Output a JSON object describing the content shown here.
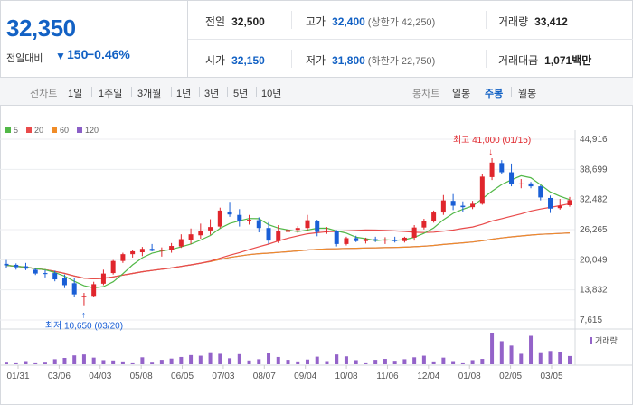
{
  "quote": {
    "price": "32,350",
    "change_label": "전일대비",
    "change_arrow": "▼",
    "change_value": "150",
    "change_pct": "−0.46%",
    "prev_close": {
      "label": "전일",
      "value": "32,500"
    },
    "high": {
      "label": "고가",
      "value": "32,400",
      "limit_label": "상한가",
      "limit_value": "42,250"
    },
    "volume": {
      "label": "거래량",
      "value": "33,412"
    },
    "open": {
      "label": "시가",
      "value": "32,150"
    },
    "low": {
      "label": "저가",
      "value": "31,800",
      "limit_label": "하한가",
      "limit_value": "22,750"
    },
    "trade_value": {
      "label": "거래대금",
      "value": "1,071",
      "unit": "백만"
    }
  },
  "toolbar": {
    "line_label": "선차트",
    "periods": [
      "1일",
      "1주일",
      "3개월",
      "1년",
      "3년",
      "5년",
      "10년"
    ],
    "candle_label": "봉차트",
    "candle_periods": [
      "일봉",
      "주봉",
      "월봉"
    ],
    "active_candle": "주봉"
  },
  "colors": {
    "up": "#e0262c",
    "down": "#1a5fd6",
    "ma5": "#52b847",
    "ma20": "#e94b4b",
    "ma60": "#f08c28",
    "ma120": "#8b5fc7",
    "volume": "#9463c9",
    "accent": "#1261c4"
  },
  "chart_data": {
    "type": "candlestick",
    "y_ticks": [
      "44,916",
      "38,699",
      "32,482",
      "26,265",
      "20,049",
      "13,832",
      "7,615"
    ],
    "ylim": [
      7615,
      44916
    ],
    "x_labels": [
      "01/31",
      "03/06",
      "04/03",
      "05/08",
      "06/05",
      "07/03",
      "08/07",
      "09/04",
      "10/08",
      "11/06",
      "12/04",
      "01/08",
      "02/05",
      "03/05"
    ],
    "legend": [
      {
        "name": "5",
        "color": "#52b847"
      },
      {
        "name": "20",
        "color": "#e94b4b"
      },
      {
        "name": "60",
        "color": "#f08c28"
      },
      {
        "name": "120",
        "color": "#8b5fc7"
      }
    ],
    "annotations": {
      "high": "최고 41,000 (01/15)",
      "low": "최저 10,650 (03/20)"
    },
    "volume_label": "거래량",
    "candles": [
      [
        19200,
        20000,
        18400,
        18900
      ],
      [
        19000,
        19300,
        18000,
        18500
      ],
      [
        18700,
        19400,
        17900,
        18200
      ],
      [
        18000,
        18300,
        16900,
        17200
      ],
      [
        17300,
        17900,
        16400,
        17100
      ],
      [
        17300,
        17800,
        15600,
        16000
      ],
      [
        16200,
        17000,
        14200,
        14800
      ],
      [
        15200,
        16400,
        12300,
        12900
      ],
      [
        12500,
        13200,
        10650,
        12600
      ],
      [
        12600,
        15500,
        12300,
        15000
      ],
      [
        15100,
        18000,
        14800,
        17200
      ],
      [
        17300,
        20000,
        17000,
        19800
      ],
      [
        19800,
        21500,
        19400,
        21200
      ],
      [
        21200,
        22100,
        20500,
        21800
      ],
      [
        21600,
        22700,
        20800,
        22300
      ],
      [
        22300,
        23300,
        21800,
        21900
      ],
      [
        21900,
        22600,
        20700,
        22100
      ],
      [
        22000,
        23500,
        21500,
        22900
      ],
      [
        22800,
        25300,
        22500,
        24300
      ],
      [
        24200,
        26500,
        23300,
        25300
      ],
      [
        25100,
        27500,
        24400,
        26000
      ],
      [
        26100,
        28400,
        25200,
        26800
      ],
      [
        26900,
        30800,
        26600,
        30200
      ],
      [
        30000,
        32000,
        28900,
        29400
      ],
      [
        29300,
        30500,
        26900,
        28100
      ],
      [
        28000,
        29300,
        27300,
        28300
      ],
      [
        28200,
        28800,
        25700,
        26600
      ],
      [
        26600,
        27800,
        23300,
        24000
      ],
      [
        23900,
        27200,
        23500,
        25900
      ],
      [
        25800,
        27300,
        25300,
        26200
      ],
      [
        26200,
        27000,
        25600,
        26600
      ],
      [
        26600,
        29300,
        26000,
        28200
      ],
      [
        28100,
        28300,
        24900,
        25800
      ],
      [
        25900,
        26800,
        25400,
        26000
      ],
      [
        26000,
        26200,
        22800,
        23300
      ],
      [
        23300,
        24800,
        23000,
        24500
      ],
      [
        24500,
        25000,
        23700,
        23900
      ],
      [
        23900,
        24600,
        23400,
        24300
      ],
      [
        24300,
        24800,
        23700,
        24000
      ],
      [
        24000,
        24700,
        23300,
        24200
      ],
      [
        24200,
        24800,
        23600,
        23900
      ],
      [
        23900,
        24800,
        23600,
        24600
      ],
      [
        24600,
        27200,
        24000,
        26700
      ],
      [
        26700,
        28500,
        26300,
        28100
      ],
      [
        28100,
        30200,
        27700,
        29800
      ],
      [
        29800,
        33400,
        29300,
        32300
      ],
      [
        32200,
        33600,
        30300,
        31200
      ],
      [
        31200,
        32100,
        30000,
        30900
      ],
      [
        30900,
        32200,
        30500,
        31600
      ],
      [
        31600,
        37700,
        31400,
        37200
      ],
      [
        37100,
        41000,
        36500,
        40100
      ],
      [
        40000,
        40600,
        37700,
        38100
      ],
      [
        38100,
        39900,
        35200,
        35700
      ],
      [
        35600,
        36700,
        34800,
        35800
      ],
      [
        35800,
        36100,
        34800,
        35200
      ],
      [
        35200,
        35400,
        32300,
        32900
      ],
      [
        32800,
        33300,
        29700,
        30600
      ],
      [
        30700,
        32600,
        30400,
        31200
      ],
      [
        31300,
        33000,
        31000,
        32350
      ]
    ],
    "volumes": [
      8,
      6,
      10,
      6,
      8,
      16,
      20,
      28,
      31,
      21,
      13,
      12,
      9,
      6,
      22,
      8,
      14,
      18,
      23,
      29,
      27,
      38,
      33,
      19,
      32,
      12,
      16,
      36,
      23,
      14,
      9,
      15,
      24,
      10,
      31,
      25,
      13,
      6,
      14,
      17,
      11,
      16,
      22,
      27,
      9,
      21,
      10,
      6,
      13,
      17,
      100,
      73,
      59,
      33,
      90,
      38,
      42,
      40,
      26
    ]
  }
}
